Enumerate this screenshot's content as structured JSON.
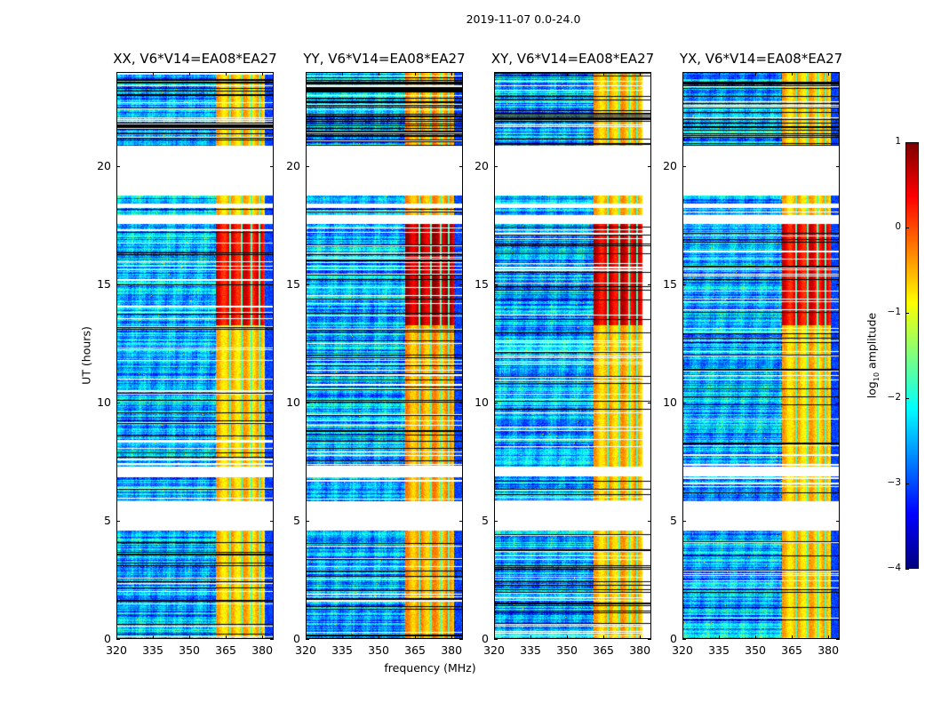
{
  "chart_data": {
    "type": "heatmap",
    "title": "2019-11-07 0.0-24.0",
    "xlabel": "frequency (MHz)",
    "ylabel": "UT (hours)",
    "xlim": [
      320,
      384.7
    ],
    "ylim": [
      0,
      24
    ],
    "xticks": [
      "320",
      "335",
      "350",
      "365",
      "380"
    ],
    "xtick_values": [
      320,
      335,
      350,
      365,
      380
    ],
    "yticks": [
      "0",
      "5",
      "10",
      "15",
      "20"
    ],
    "ytick_values": [
      0,
      5,
      10,
      15,
      20
    ],
    "panels": [
      {
        "title": "XX, V6*V14=EA08*EA27",
        "seed": 11,
        "boost": 0.0
      },
      {
        "title": "YY, V6*V14=EA08*EA27",
        "seed": 23,
        "boost": 0.3
      },
      {
        "title": "XY, V6*V14=EA08*EA27",
        "seed": 37,
        "boost": 0.1
      },
      {
        "title": "YX, V6*V14=EA08*EA27",
        "seed": 53,
        "boost": 0.0
      }
    ],
    "colorbar": {
      "label_main": "log",
      "label_sub": "10",
      "label_rest": " amplitude",
      "colormap": "jet",
      "range": [
        -4,
        1
      ],
      "ticks": [
        "1",
        "0",
        "−1",
        "−2",
        "−3",
        "−4"
      ],
      "tick_values": [
        1,
        0,
        -1,
        -2,
        -3,
        -4
      ]
    },
    "flagged_hours": [
      [
        20.9,
        24.0,
        "partial"
      ],
      [
        18.8,
        20.9,
        "empty"
      ],
      [
        18.25,
        18.45,
        "empty"
      ],
      [
        17.6,
        17.95,
        "empty"
      ],
      [
        6.9,
        7.3,
        "empty"
      ],
      [
        4.6,
        5.85,
        "empty"
      ]
    ],
    "rfi_band_mhz": [
      360.8,
      380.7
    ],
    "strong_rfi_hours": [
      13.3,
      17.6
    ],
    "background_log_amp": -2.5,
    "band_log_amp": -0.6,
    "strong_band_log_amp": 0.4
  }
}
